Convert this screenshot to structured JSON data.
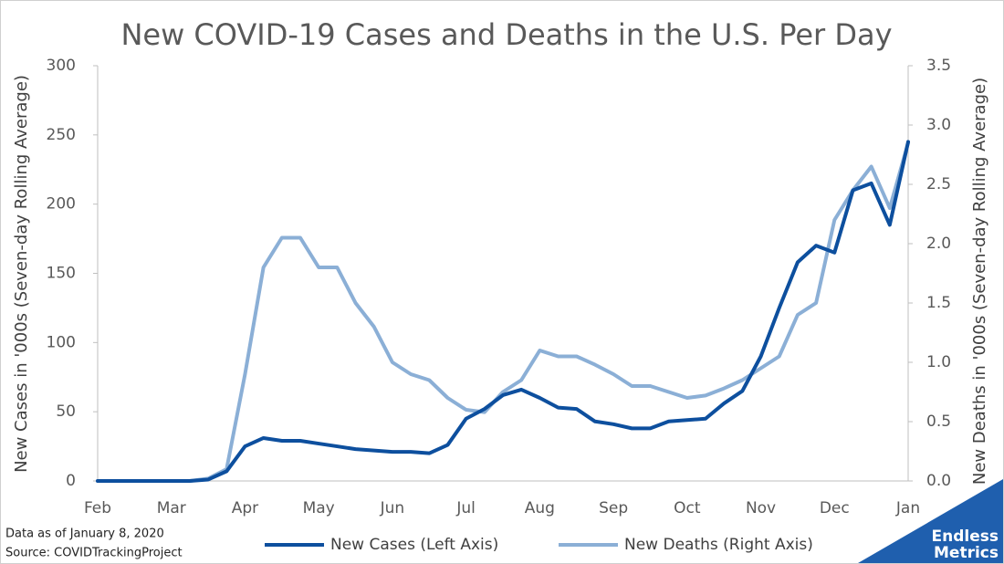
{
  "chart_data": {
    "type": "line",
    "title": "New COVID-19 Cases and Deaths in the U.S. Per Day",
    "y_label": "New Cases in '000s (Seven-day Rolling Average)",
    "y2_label": "New Deaths in '000s (Seven-day Rolling Average)",
    "notes": [
      "Data as of January 8, 2020",
      "Source: COVIDTrackingProject"
    ],
    "logo": [
      "Endless",
      "Metrics"
    ],
    "categories": [
      "Feb",
      null,
      null,
      null,
      "Mar",
      null,
      null,
      null,
      "Apr",
      null,
      null,
      null,
      "May",
      null,
      null,
      null,
      "Jun",
      null,
      null,
      null,
      "Jul",
      null,
      null,
      null,
      "Aug",
      null,
      null,
      null,
      "Sep",
      null,
      null,
      null,
      "Oct",
      null,
      null,
      null,
      "Nov",
      null,
      null,
      null,
      "Dec",
      null,
      null,
      null,
      "Jan"
    ],
    "series": [
      {
        "name": "New Cases (Left Axis)",
        "color": "#0d4f9e",
        "axis": "y",
        "values": [
          0,
          0,
          0,
          0,
          0,
          0,
          1,
          7,
          25,
          31,
          29,
          29,
          27,
          25,
          23,
          22,
          21,
          21,
          20,
          26,
          45,
          52,
          62,
          66,
          60,
          53,
          52,
          43,
          41,
          38,
          38,
          43,
          44,
          45,
          56,
          65,
          90,
          125,
          158,
          170,
          165,
          210,
          215,
          185,
          245
        ]
      },
      {
        "name": "New Deaths (Right Axis)",
        "color": "#8bafd6",
        "axis": "y2",
        "values": [
          0,
          0,
          0,
          0,
          0,
          0,
          0.02,
          0.1,
          0.9,
          1.8,
          2.05,
          2.05,
          1.8,
          1.8,
          1.5,
          1.3,
          1.0,
          0.9,
          0.85,
          0.7,
          0.6,
          0.58,
          0.75,
          0.85,
          1.1,
          1.05,
          1.05,
          0.98,
          0.9,
          0.8,
          0.8,
          0.75,
          0.7,
          0.72,
          0.78,
          0.85,
          0.95,
          1.05,
          1.4,
          1.5,
          2.2,
          2.45,
          2.65,
          2.3,
          2.85
        ]
      }
    ],
    "ylim": [
      0,
      300
    ],
    "yticks": [
      0,
      50,
      100,
      150,
      200,
      250,
      300
    ],
    "y2lim": [
      0,
      3.5
    ],
    "y2ticks": [
      {
        "value": 0,
        "label": "0.0"
      },
      0.5,
      {
        "value": 1,
        "label": "1.0"
      },
      1.5,
      {
        "value": 2,
        "label": "2.0"
      },
      2.5,
      {
        "value": 3,
        "label": "3.0"
      },
      3.5
    ],
    "grid": false,
    "legend": "bottom"
  }
}
